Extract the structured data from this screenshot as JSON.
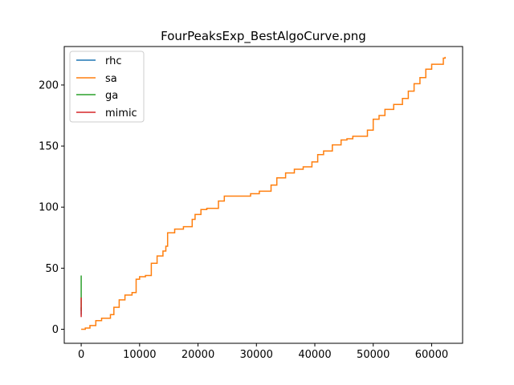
{
  "chart_data": {
    "type": "line",
    "title": "FourPeaksExp_BestAlgoCurve.png",
    "xlabel": "",
    "ylabel": "",
    "xlim": [
      -2900,
      65300
    ],
    "ylim": [
      -11.5,
      231.5
    ],
    "xticks": [
      0,
      10000,
      20000,
      30000,
      40000,
      50000,
      60000
    ],
    "yticks": [
      0,
      50,
      100,
      150,
      200
    ],
    "grid": false,
    "legend_position": "top-left",
    "series": [
      {
        "name": "rhc",
        "color": "#1f77b4",
        "x": [
          0,
          0
        ],
        "y": [
          12,
          18
        ]
      },
      {
        "name": "sa",
        "color": "#ff7f0e",
        "x": [
          0,
          700,
          1500,
          2500,
          3500,
          5000,
          5600,
          6500,
          7500,
          8700,
          9400,
          10000,
          11000,
          12000,
          13000,
          14000,
          14500,
          14800,
          16000,
          17500,
          19000,
          19500,
          20500,
          21500,
          23500,
          24500,
          27000,
          29000,
          30500,
          32500,
          33500,
          35000,
          36500,
          38000,
          39500,
          40500,
          41500,
          43000,
          44500,
          45500,
          46500,
          48500,
          49000,
          50000,
          51000,
          52000,
          53500,
          55000,
          56000,
          57000,
          58000,
          59000,
          60000,
          61000,
          62000,
          62300
        ],
        "y": [
          0,
          1,
          3,
          7,
          9,
          12,
          18,
          24,
          28,
          30,
          41,
          43,
          44,
          54,
          60,
          64,
          68,
          79,
          82,
          84,
          90,
          94,
          98,
          99,
          105,
          109,
          109,
          111,
          113,
          118,
          124,
          128,
          131,
          133,
          137,
          143,
          146,
          151,
          155,
          156,
          158,
          158,
          163,
          172,
          175,
          180,
          184,
          189,
          195,
          201,
          206,
          213,
          217,
          217,
          222,
          223
        ]
      },
      {
        "name": "ga",
        "color": "#2ca02c",
        "x": [
          0,
          0,
          0
        ],
        "y": [
          15,
          30,
          44
        ]
      },
      {
        "name": "mimic",
        "color": "#d62728",
        "x": [
          0,
          0,
          0
        ],
        "y": [
          10,
          18,
          26
        ]
      }
    ]
  }
}
